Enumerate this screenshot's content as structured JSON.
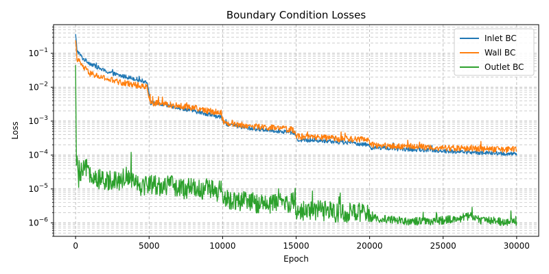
{
  "chart_data": {
    "type": "line",
    "title": "Boundary Condition Losses",
    "xlabel": "Epoch",
    "ylabel": "Loss",
    "xlim": [
      -1500,
      31500
    ],
    "ylim": [
      4e-07,
      0.7
    ],
    "yscale": "log",
    "grid": true,
    "legend_position": "top-right",
    "x_ticks": [
      0,
      5000,
      10000,
      15000,
      20000,
      25000,
      30000
    ],
    "x_tick_labels": [
      "0",
      "5000",
      "10000",
      "15000",
      "20000",
      "25000",
      "30000"
    ],
    "y_ticks": [
      1e-06,
      1e-05,
      0.0001,
      0.001,
      0.01,
      0.1
    ],
    "y_tick_labels": [
      "10",
      "10",
      "10",
      "10",
      "10",
      "10"
    ],
    "y_tick_exponents": [
      "−6",
      "−5",
      "−4",
      "−3",
      "−2",
      "−1"
    ],
    "series": [
      {
        "name": "Inlet BC",
        "color": "#1f77b4",
        "x": [
          0,
          100,
          500,
          1000,
          2000,
          3000,
          4000,
          4900,
          5000,
          5100,
          6000,
          7000,
          8000,
          9000,
          9900,
          10000,
          10100,
          11000,
          12000,
          13000,
          14000,
          14900,
          15000,
          15100,
          16000,
          17000,
          18000,
          19000,
          19900,
          20000,
          20100,
          21000,
          22000,
          23000,
          24000,
          25000,
          26000,
          27000,
          28000,
          29000,
          30000
        ],
        "y": [
          0.35,
          0.12,
          0.07,
          0.05,
          0.03,
          0.022,
          0.018,
          0.014,
          0.006,
          0.0035,
          0.003,
          0.0025,
          0.002,
          0.0016,
          0.0013,
          0.0011,
          0.00085,
          0.0007,
          0.0006,
          0.00055,
          0.0005,
          0.00045,
          0.00035,
          0.00028,
          0.00027,
          0.00026,
          0.00024,
          0.00022,
          0.0002,
          0.00018,
          0.000165,
          0.00016,
          0.00015,
          0.000145,
          0.00014,
          0.00013,
          0.000125,
          0.00012,
          0.000115,
          0.00011,
          0.000105
        ]
      },
      {
        "name": "Wall BC",
        "color": "#ff7f0e",
        "x": [
          0,
          100,
          500,
          1000,
          2000,
          3000,
          4000,
          4900,
          5000,
          5100,
          6000,
          7000,
          8000,
          9000,
          9900,
          10000,
          10100,
          11000,
          12000,
          13000,
          14000,
          14900,
          15000,
          15100,
          16000,
          17000,
          18000,
          19000,
          19900,
          20000,
          20100,
          21000,
          22000,
          23000,
          24000,
          25000,
          26000,
          27000,
          28000,
          29000,
          30000
        ],
        "y": [
          0.2,
          0.07,
          0.04,
          0.025,
          0.018,
          0.014,
          0.012,
          0.01,
          0.005,
          0.0035,
          0.0032,
          0.0028,
          0.0025,
          0.002,
          0.0018,
          0.0012,
          0.0009,
          0.0008,
          0.0007,
          0.00065,
          0.0006,
          0.00055,
          0.0004,
          0.00035,
          0.00034,
          0.00032,
          0.0003,
          0.00029,
          0.00028,
          0.00022,
          0.0002,
          0.00019,
          0.00018,
          0.00018,
          0.00017,
          0.00016,
          0.00016,
          0.000155,
          0.00015,
          0.000145,
          0.00014
        ]
      },
      {
        "name": "Outlet BC",
        "color": "#2ca02c",
        "x": [
          0,
          50,
          100,
          200,
          400,
          700,
          1000,
          1500,
          2000,
          2500,
          3000,
          3500,
          4000,
          4500,
          5000,
          5500,
          6000,
          6500,
          7000,
          7500,
          8000,
          8500,
          9000,
          9500,
          9900,
          10000,
          10100,
          11000,
          12000,
          13000,
          14000,
          14900,
          15000,
          15100,
          16000,
          17000,
          18000,
          19000,
          19900,
          20000,
          20100,
          21000,
          22000,
          23000,
          24000,
          25000,
          26000,
          26800,
          27500,
          28000,
          29000,
          30000
        ],
        "y": [
          0.03,
          0.0001,
          5e-05,
          2e-05,
          3e-05,
          4e-05,
          3e-05,
          2e-05,
          1.5e-05,
          2e-05,
          1.8e-05,
          2.5e-05,
          2e-05,
          1.2e-05,
          1.5e-05,
          1.3e-05,
          1.2e-05,
          1.4e-05,
          1e-05,
          1e-05,
          1.2e-05,
          9e-06,
          1.1e-05,
          8e-06,
          9e-06,
          4e-06,
          5e-06,
          4.5e-06,
          4e-06,
          3.5e-06,
          4e-06,
          4e-06,
          2e-06,
          2.2e-06,
          2.5e-06,
          2.2e-06,
          2e-06,
          2e-06,
          1.8e-06,
          1.3e-06,
          1.4e-06,
          1.3e-06,
          1.2e-06,
          1.1e-06,
          1.1e-06,
          1.2e-06,
          1.3e-06,
          1.6e-06,
          1.2e-06,
          1.2e-06,
          1.1e-06,
          1.1e-06
        ]
      }
    ]
  }
}
